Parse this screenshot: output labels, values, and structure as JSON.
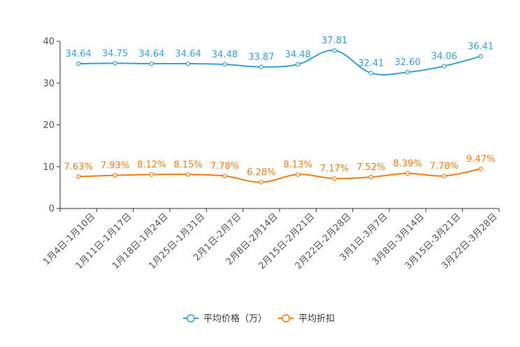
{
  "chart_data": {
    "type": "line",
    "title": "",
    "xlabel": "",
    "ylabel": "",
    "ylim": [
      0,
      40
    ],
    "yticks": [
      "0",
      "10",
      "20",
      "30",
      "40"
    ],
    "grid": false,
    "legend_position": "bottom-center",
    "categories": [
      "1月4日-1月10日",
      "1月11日-1月17日",
      "1月18日-1月24日",
      "1月25日-1月31日",
      "2月1日-2月7日",
      "2月8日-2月14日",
      "2月15日-2月21日",
      "2月22日-2月28日",
      "3月1日-3月7日",
      "3月8日-3月14日",
      "3月15日-3月21日",
      "3月22日-3月28日"
    ],
    "series": [
      {
        "name": "平均价格（万）",
        "color": "#3a9fd1",
        "values": [
          34.64,
          34.75,
          34.64,
          34.64,
          34.48,
          33.87,
          34.48,
          37.81,
          32.41,
          32.6,
          34.06,
          36.41
        ],
        "labels": [
          "34.64",
          "34.75",
          "34.64",
          "34.64",
          "34.48",
          "33.87",
          "34.48",
          "37.81",
          "32.41",
          "32.60",
          "34.06",
          "36.41"
        ]
      },
      {
        "name": "平均折扣",
        "color": "#f07d14",
        "values": [
          7.63,
          7.93,
          8.12,
          8.15,
          7.78,
          6.28,
          8.13,
          7.17,
          7.52,
          8.39,
          7.78,
          9.47
        ],
        "labels": [
          "7.63%",
          "7.93%",
          "8.12%",
          "8.15%",
          "7.78%",
          "6.28%",
          "8.13%",
          "7.17%",
          "7.52%",
          "8.39%",
          "7.78%",
          "9.47%"
        ]
      }
    ]
  }
}
